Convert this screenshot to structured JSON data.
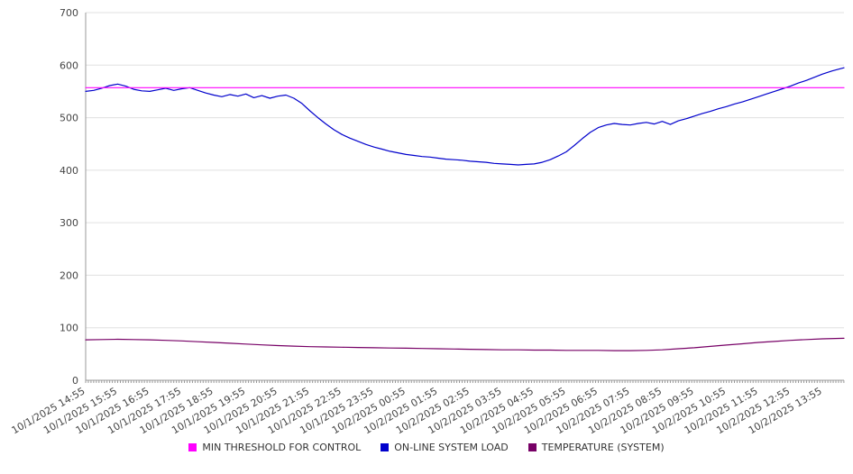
{
  "chart_data": {
    "type": "line",
    "title": "",
    "xlabel": "",
    "ylabel": "",
    "ylim": [
      0,
      700
    ],
    "y_ticks": [
      0,
      100,
      200,
      300,
      400,
      500,
      600,
      700
    ],
    "x_range_hours": [
      0,
      23.67
    ],
    "grid": true,
    "legend_position": "bottom",
    "x_label_rotation": -30,
    "x_tick_labels": [
      "10/1/2025 14:55",
      "10/1/2025 15:55",
      "10/1/2025 16:55",
      "10/1/2025 17:55",
      "10/1/2025 18:55",
      "10/1/2025 19:55",
      "10/1/2025 20:55",
      "10/1/2025 21:55",
      "10/1/2025 22:55",
      "10/1/2025 23:55",
      "10/2/2025 00:55",
      "10/2/2025 01:55",
      "10/2/2025 02:55",
      "10/2/2025 03:55",
      "10/2/2025 04:55",
      "10/2/2025 05:55",
      "10/2/2025 06:55",
      "10/2/2025 07:55",
      "10/2/2025 08:55",
      "10/2/2025 09:55",
      "10/2/2025 10:55",
      "10/2/2025 11:55",
      "10/2/2025 12:55",
      "10/2/2025 13:55"
    ],
    "colors": {
      "grid": "#e0e0e0",
      "axis": "#999999",
      "tick_text": "#444444"
    },
    "series": [
      {
        "name": "MIN THRESHOLD FOR CONTROL",
        "color": "#ff00ff",
        "points": [
          [
            0,
            557
          ],
          [
            23.67,
            557
          ]
        ]
      },
      {
        "name": "ON-LINE SYSTEM LOAD",
        "color": "#0000cc",
        "points": [
          [
            0,
            550
          ],
          [
            0.25,
            552
          ],
          [
            0.5,
            556
          ],
          [
            0.75,
            561
          ],
          [
            1,
            564
          ],
          [
            1.25,
            560
          ],
          [
            1.5,
            554
          ],
          [
            1.75,
            551
          ],
          [
            2,
            550
          ],
          [
            2.25,
            553
          ],
          [
            2.5,
            556
          ],
          [
            2.75,
            552
          ],
          [
            3,
            555
          ],
          [
            3.25,
            557
          ],
          [
            3.5,
            552
          ],
          [
            3.75,
            547
          ],
          [
            4,
            543
          ],
          [
            4.25,
            540
          ],
          [
            4.5,
            544
          ],
          [
            4.75,
            541
          ],
          [
            5,
            545
          ],
          [
            5.25,
            538
          ],
          [
            5.5,
            542
          ],
          [
            5.75,
            537
          ],
          [
            6,
            541
          ],
          [
            6.25,
            543
          ],
          [
            6.5,
            537
          ],
          [
            6.75,
            527
          ],
          [
            7,
            513
          ],
          [
            7.25,
            500
          ],
          [
            7.5,
            488
          ],
          [
            7.75,
            477
          ],
          [
            8,
            468
          ],
          [
            8.25,
            461
          ],
          [
            8.5,
            455
          ],
          [
            8.75,
            449
          ],
          [
            9,
            444
          ],
          [
            9.25,
            440
          ],
          [
            9.5,
            436
          ],
          [
            9.75,
            433
          ],
          [
            10,
            430
          ],
          [
            10.25,
            428
          ],
          [
            10.5,
            426
          ],
          [
            10.75,
            425
          ],
          [
            11,
            423
          ],
          [
            11.25,
            421
          ],
          [
            11.5,
            420
          ],
          [
            11.75,
            419
          ],
          [
            12,
            417
          ],
          [
            12.25,
            416
          ],
          [
            12.5,
            415
          ],
          [
            12.75,
            413
          ],
          [
            13,
            412
          ],
          [
            13.25,
            411
          ],
          [
            13.5,
            410
          ],
          [
            13.75,
            411
          ],
          [
            14,
            412
          ],
          [
            14.25,
            415
          ],
          [
            14.5,
            420
          ],
          [
            14.75,
            427
          ],
          [
            15,
            435
          ],
          [
            15.25,
            447
          ],
          [
            15.5,
            460
          ],
          [
            15.75,
            472
          ],
          [
            16,
            481
          ],
          [
            16.25,
            486
          ],
          [
            16.5,
            489
          ],
          [
            16.75,
            487
          ],
          [
            17,
            486
          ],
          [
            17.25,
            489
          ],
          [
            17.5,
            491
          ],
          [
            17.75,
            488
          ],
          [
            18,
            493
          ],
          [
            18.25,
            487
          ],
          [
            18.5,
            494
          ],
          [
            18.75,
            498
          ],
          [
            19,
            503
          ],
          [
            19.25,
            508
          ],
          [
            19.5,
            512
          ],
          [
            19.75,
            517
          ],
          [
            20,
            521
          ],
          [
            20.25,
            526
          ],
          [
            20.5,
            530
          ],
          [
            20.75,
            535
          ],
          [
            21,
            540
          ],
          [
            21.25,
            545
          ],
          [
            21.5,
            550
          ],
          [
            21.75,
            555
          ],
          [
            22,
            560
          ],
          [
            22.25,
            566
          ],
          [
            22.5,
            571
          ],
          [
            22.75,
            577
          ],
          [
            23,
            583
          ],
          [
            23.3,
            589
          ],
          [
            23.67,
            595
          ]
        ]
      },
      {
        "name": "TEMPERATURE (SYSTEM)",
        "color": "#770066",
        "points": [
          [
            0,
            77
          ],
          [
            0.5,
            77.5
          ],
          [
            1,
            78
          ],
          [
            1.5,
            77.5
          ],
          [
            2,
            77
          ],
          [
            2.5,
            76
          ],
          [
            3,
            75
          ],
          [
            3.5,
            73.5
          ],
          [
            4,
            72
          ],
          [
            4.5,
            70.5
          ],
          [
            5,
            69
          ],
          [
            5.5,
            67.5
          ],
          [
            6,
            66
          ],
          [
            6.5,
            65
          ],
          [
            7,
            64
          ],
          [
            7.5,
            63.5
          ],
          [
            8,
            63
          ],
          [
            8.5,
            62.5
          ],
          [
            9,
            62
          ],
          [
            9.5,
            61.5
          ],
          [
            10,
            61
          ],
          [
            10.5,
            60.5
          ],
          [
            11,
            60
          ],
          [
            11.5,
            59.5
          ],
          [
            12,
            59
          ],
          [
            12.5,
            58.5
          ],
          [
            13,
            58
          ],
          [
            13.5,
            58
          ],
          [
            14,
            57.5
          ],
          [
            14.5,
            57.5
          ],
          [
            15,
            57
          ],
          [
            15.5,
            57
          ],
          [
            16,
            57
          ],
          [
            16.5,
            56.5
          ],
          [
            17,
            56.5
          ],
          [
            17.5,
            57
          ],
          [
            18,
            58
          ],
          [
            18.5,
            60
          ],
          [
            19,
            62
          ],
          [
            19.5,
            64.5
          ],
          [
            20,
            67
          ],
          [
            20.5,
            69.5
          ],
          [
            21,
            72
          ],
          [
            21.5,
            74
          ],
          [
            22,
            76
          ],
          [
            22.5,
            77.5
          ],
          [
            23,
            79
          ],
          [
            23.67,
            80
          ]
        ]
      }
    ]
  }
}
